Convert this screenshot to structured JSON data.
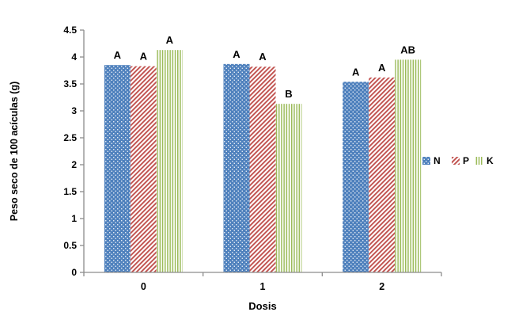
{
  "chart_data": {
    "type": "bar",
    "title": "",
    "xlabel": "Dosis",
    "ylabel": "Peso seco de 100 acículas (g)",
    "categories": [
      "0",
      "1",
      "2"
    ],
    "series": [
      {
        "name": "N",
        "pattern": "dots",
        "color": "#4f81bd",
        "values": [
          3.85,
          3.87,
          3.54
        ],
        "sig_labels": [
          "A",
          "A",
          "A"
        ]
      },
      {
        "name": "P",
        "pattern": "diagonal",
        "color": "#c0504d",
        "values": [
          3.83,
          3.82,
          3.62
        ],
        "sig_labels": [
          "A",
          "A",
          "A"
        ]
      },
      {
        "name": "K",
        "pattern": "vertical",
        "color": "#9bbb59",
        "values": [
          4.13,
          3.13,
          3.95
        ],
        "sig_labels": [
          "A",
          "B",
          "AB"
        ]
      }
    ],
    "ylim": [
      0,
      4.5
    ],
    "ytick_step": 0.5,
    "yticks": [
      "0",
      "0.5",
      "1",
      "1.5",
      "2",
      "2.5",
      "3",
      "3.5",
      "4",
      "4.5"
    ],
    "grid": false,
    "legend_position": "right",
    "axis_color": "#8c8c8c",
    "text_color": "#000000",
    "background_color": "#ffffff"
  }
}
